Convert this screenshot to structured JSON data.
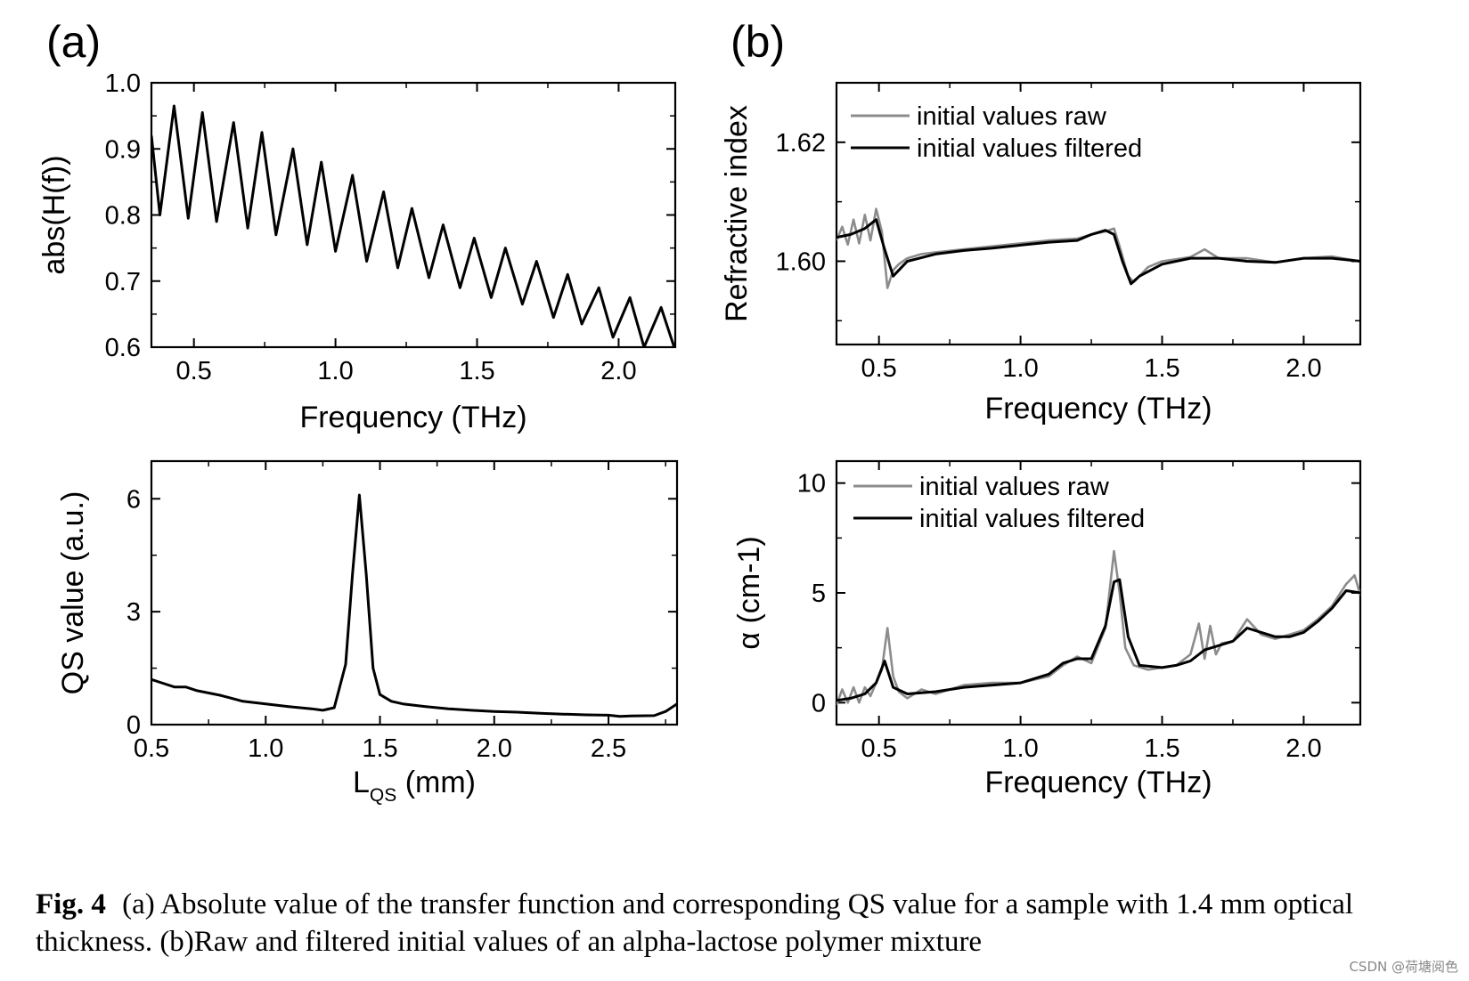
{
  "panels": {
    "a": "(a)",
    "b": "(b)"
  },
  "caption": {
    "label": "Fig. 4",
    "text": "(a) Absolute value of the transfer function and corresponding QS value for a sample with 1.4 mm optical thickness. (b)Raw and filtered initial values of an alpha-lactose polymer mixture"
  },
  "watermark": "CSDN @荷塘阅色",
  "chart_data": [
    {
      "id": "a-top",
      "type": "line",
      "xlabel": "Frequency (THz)",
      "ylabel": "abs(H(f))",
      "xlim": [
        0.35,
        2.2
      ],
      "ylim": [
        0.6,
        1.0
      ],
      "xticks": [
        0.5,
        1.0,
        1.5,
        2.0
      ],
      "xtick_labels": [
        "0.5",
        "1.0",
        "1.5",
        "2.0"
      ],
      "yticks": [
        0.6,
        0.7,
        0.8,
        0.9,
        1.0
      ],
      "ytick_labels": [
        "0.6",
        "0.7",
        "0.8",
        "0.9",
        "1.0"
      ],
      "series": [
        {
          "name": "abs(H(f))",
          "color": "#000000",
          "x": [
            0.35,
            0.38,
            0.43,
            0.48,
            0.53,
            0.58,
            0.64,
            0.69,
            0.74,
            0.79,
            0.85,
            0.9,
            0.95,
            1.0,
            1.06,
            1.11,
            1.17,
            1.22,
            1.27,
            1.33,
            1.38,
            1.44,
            1.49,
            1.55,
            1.6,
            1.66,
            1.71,
            1.77,
            1.82,
            1.87,
            1.93,
            1.98,
            2.04,
            2.09,
            2.15,
            2.2
          ],
          "values": [
            0.92,
            0.8,
            0.965,
            0.795,
            0.955,
            0.79,
            0.94,
            0.78,
            0.925,
            0.77,
            0.9,
            0.755,
            0.88,
            0.745,
            0.86,
            0.73,
            0.835,
            0.72,
            0.81,
            0.705,
            0.785,
            0.69,
            0.765,
            0.675,
            0.75,
            0.665,
            0.73,
            0.645,
            0.71,
            0.635,
            0.69,
            0.615,
            0.675,
            0.6,
            0.66,
            0.595
          ]
        }
      ]
    },
    {
      "id": "a-bottom",
      "type": "line",
      "xlabel": "L",
      "xlabel_sub": "QS",
      "xlabel_unit": " (mm)",
      "ylabel": "QS value (a.u.)",
      "xlim": [
        0.5,
        2.8
      ],
      "ylim": [
        0,
        7
      ],
      "xticks": [
        0.5,
        1.0,
        1.5,
        2.0,
        2.5
      ],
      "xtick_labels": [
        "0.5",
        "1.0",
        "1.5",
        "2.0",
        "2.5"
      ],
      "yticks": [
        0,
        3,
        6
      ],
      "ytick_labels": [
        "0",
        "3",
        "6"
      ],
      "series": [
        {
          "name": "QS value",
          "color": "#000000",
          "x": [
            0.5,
            0.55,
            0.6,
            0.65,
            0.7,
            0.8,
            0.9,
            1.0,
            1.1,
            1.2,
            1.25,
            1.3,
            1.35,
            1.38,
            1.41,
            1.44,
            1.47,
            1.5,
            1.55,
            1.6,
            1.7,
            1.8,
            1.9,
            2.0,
            2.1,
            2.2,
            2.3,
            2.4,
            2.5,
            2.55,
            2.6,
            2.7,
            2.75,
            2.8
          ],
          "values": [
            1.2,
            1.1,
            1.0,
            1.0,
            0.9,
            0.78,
            0.62,
            0.55,
            0.48,
            0.42,
            0.38,
            0.45,
            1.6,
            4.0,
            6.1,
            4.0,
            1.5,
            0.8,
            0.62,
            0.55,
            0.48,
            0.42,
            0.38,
            0.35,
            0.33,
            0.3,
            0.28,
            0.26,
            0.25,
            0.22,
            0.23,
            0.24,
            0.35,
            0.55
          ]
        }
      ]
    },
    {
      "id": "b-top",
      "type": "line",
      "xlabel": "Frequency (THz)",
      "ylabel": "Refractive index",
      "xlim": [
        0.35,
        2.2
      ],
      "ylim": [
        1.586,
        1.63
      ],
      "xticks": [
        0.5,
        1.0,
        1.5,
        2.0
      ],
      "xtick_labels": [
        "0.5",
        "1.0",
        "1.5",
        "2.0"
      ],
      "yticks": [
        1.6,
        1.62
      ],
      "ytick_labels": [
        "1.60",
        "1.62"
      ],
      "legend": {
        "position": "top-left",
        "entries": [
          "initial values raw",
          "initial values filtered"
        ]
      },
      "series": [
        {
          "name": "initial values raw",
          "color": "#8c8c8c",
          "x": [
            0.35,
            0.37,
            0.39,
            0.41,
            0.43,
            0.45,
            0.47,
            0.49,
            0.51,
            0.53,
            0.55,
            0.57,
            0.6,
            0.65,
            0.7,
            0.8,
            0.9,
            1.0,
            1.1,
            1.2,
            1.25,
            1.3,
            1.33,
            1.35,
            1.38,
            1.4,
            1.45,
            1.5,
            1.6,
            1.65,
            1.7,
            1.8,
            1.9,
            2.0,
            2.1,
            2.2
          ],
          "values": [
            1.6035,
            1.6058,
            1.6028,
            1.607,
            1.603,
            1.6078,
            1.6035,
            1.6088,
            1.605,
            1.5955,
            1.5985,
            1.5995,
            1.6005,
            1.6012,
            1.6015,
            1.602,
            1.6025,
            1.603,
            1.6035,
            1.6038,
            1.6045,
            1.605,
            1.6055,
            1.6025,
            1.5975,
            1.5965,
            1.599,
            1.6,
            1.6007,
            1.602,
            1.6005,
            1.6005,
            1.5998,
            1.6005,
            1.6008,
            1.6
          ]
        },
        {
          "name": "initial values filtered",
          "color": "#000000",
          "x": [
            0.35,
            0.4,
            0.45,
            0.49,
            0.52,
            0.55,
            0.6,
            0.7,
            0.8,
            0.9,
            1.0,
            1.1,
            1.2,
            1.25,
            1.3,
            1.33,
            1.36,
            1.39,
            1.42,
            1.5,
            1.6,
            1.7,
            1.8,
            1.9,
            2.0,
            2.1,
            2.2
          ],
          "values": [
            1.604,
            1.6045,
            1.6055,
            1.607,
            1.602,
            1.5975,
            1.6,
            1.6012,
            1.6018,
            1.6022,
            1.6027,
            1.6032,
            1.6035,
            1.6045,
            1.6052,
            1.6045,
            1.6,
            1.5962,
            1.5975,
            1.5995,
            1.6005,
            1.6005,
            1.6,
            1.5998,
            1.6005,
            1.6005,
            1.6
          ]
        }
      ]
    },
    {
      "id": "b-bottom",
      "type": "line",
      "xlabel": "Frequency (THz)",
      "ylabel": "α (cm-1)",
      "xlim": [
        0.35,
        2.2
      ],
      "ylim": [
        -1,
        11
      ],
      "xticks": [
        0.5,
        1.0,
        1.5,
        2.0
      ],
      "xtick_labels": [
        "0.5",
        "1.0",
        "1.5",
        "2.0"
      ],
      "yticks": [
        0,
        5,
        10
      ],
      "ytick_labels": [
        "0",
        "5",
        "10"
      ],
      "legend": {
        "position": "top-left",
        "entries": [
          "initial values raw",
          "initial values filtered"
        ]
      },
      "series": [
        {
          "name": "initial values raw",
          "color": "#8c8c8c",
          "x": [
            0.35,
            0.37,
            0.39,
            0.41,
            0.43,
            0.45,
            0.47,
            0.49,
            0.51,
            0.53,
            0.55,
            0.57,
            0.6,
            0.65,
            0.7,
            0.8,
            0.9,
            1.0,
            1.1,
            1.15,
            1.2,
            1.25,
            1.3,
            1.33,
            1.35,
            1.37,
            1.4,
            1.45,
            1.5,
            1.55,
            1.6,
            1.63,
            1.65,
            1.67,
            1.69,
            1.71,
            1.75,
            1.8,
            1.85,
            1.9,
            1.95,
            2.0,
            2.05,
            2.1,
            2.15,
            2.18,
            2.2
          ],
          "values": [
            -0.1,
            0.6,
            0.0,
            0.7,
            0.0,
            0.7,
            0.3,
            0.9,
            1.5,
            3.4,
            1.2,
            0.5,
            0.2,
            0.6,
            0.4,
            0.8,
            0.9,
            0.9,
            1.2,
            1.7,
            2.1,
            1.8,
            3.4,
            6.9,
            5.0,
            2.5,
            1.7,
            1.5,
            1.6,
            1.7,
            2.2,
            3.6,
            2.0,
            3.5,
            2.2,
            2.7,
            2.8,
            3.8,
            3.1,
            2.9,
            3.1,
            3.3,
            3.8,
            4.4,
            5.4,
            5.8,
            4.9
          ]
        },
        {
          "name": "initial values filtered",
          "color": "#000000",
          "x": [
            0.35,
            0.4,
            0.45,
            0.49,
            0.52,
            0.55,
            0.6,
            0.7,
            0.8,
            0.9,
            1.0,
            1.1,
            1.15,
            1.2,
            1.25,
            1.3,
            1.33,
            1.35,
            1.38,
            1.42,
            1.5,
            1.55,
            1.6,
            1.65,
            1.7,
            1.75,
            1.8,
            1.85,
            1.9,
            1.95,
            2.0,
            2.05,
            2.1,
            2.15,
            2.2
          ],
          "values": [
            0.1,
            0.2,
            0.4,
            0.9,
            1.9,
            0.7,
            0.4,
            0.5,
            0.7,
            0.8,
            0.9,
            1.3,
            1.8,
            2.0,
            2.0,
            3.5,
            5.5,
            5.6,
            3.0,
            1.7,
            1.6,
            1.7,
            1.9,
            2.4,
            2.6,
            2.8,
            3.4,
            3.2,
            3.0,
            3.0,
            3.2,
            3.7,
            4.3,
            5.1,
            5.0
          ]
        }
      ]
    }
  ]
}
